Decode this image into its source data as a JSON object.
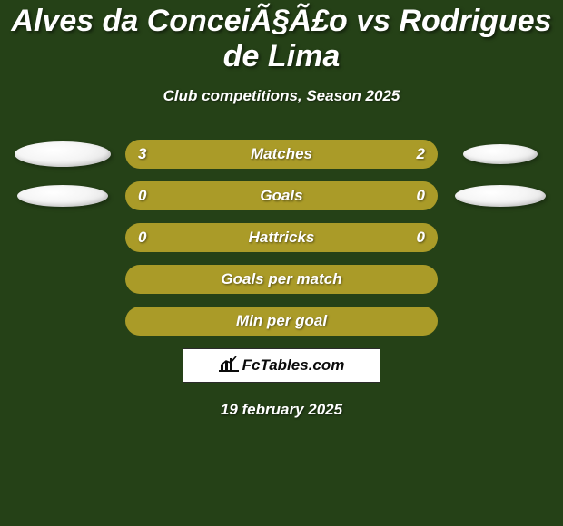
{
  "title": "Alves da ConceiÃ§Ã£o vs Rodrigues de Lima",
  "subtitle": "Club competitions, Season 2025",
  "date": "19 february 2025",
  "logo_text": "FcTables.com",
  "background_color": "#254117",
  "bar_color": "#aa9b28",
  "oval_color": "#f0f0f0",
  "rows": [
    {
      "label": "Matches",
      "left_val": "3",
      "right_val": "2",
      "oval_left_w": 106,
      "oval_left_h": 28,
      "oval_right_w": 82,
      "oval_right_h": 22,
      "show_ovals": true
    },
    {
      "label": "Goals",
      "left_val": "0",
      "right_val": "0",
      "oval_left_w": 100,
      "oval_left_h": 24,
      "oval_right_w": 100,
      "oval_right_h": 24,
      "show_ovals": true
    },
    {
      "label": "Hattricks",
      "left_val": "0",
      "right_val": "0",
      "show_ovals": false
    },
    {
      "label": "Goals per match",
      "show_ovals": false
    },
    {
      "label": "Min per goal",
      "show_ovals": false
    }
  ]
}
